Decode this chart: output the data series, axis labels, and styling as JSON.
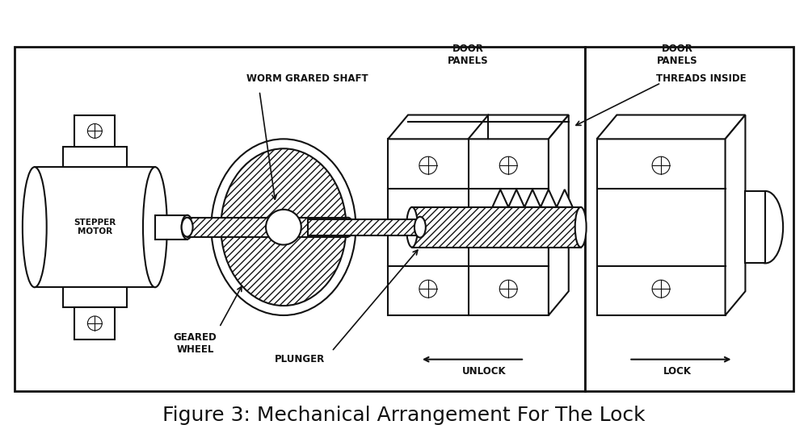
{
  "title": "Figure 3: Mechanical Arrangement For The Lock",
  "title_fontsize": 18,
  "bg_color": "#ffffff",
  "line_color": "#111111",
  "lw": 1.5,
  "fig_width": 10.0,
  "fig_height": 5.32,
  "labels": {
    "stepper_motor": "STEPPER\nMOTOR",
    "worm_shaft": "WORM GRARED SHAFT",
    "geared_wheel": "GEARED\nWHEEL",
    "plunger": "PLUNGER",
    "door_panels_left": "DOOR\nPANELS",
    "door_panels_right": "DOOR\nPANELS",
    "threads_inside": "THREADS INSIDE",
    "unlock": "UNLOCK",
    "lock": "LOCK"
  }
}
